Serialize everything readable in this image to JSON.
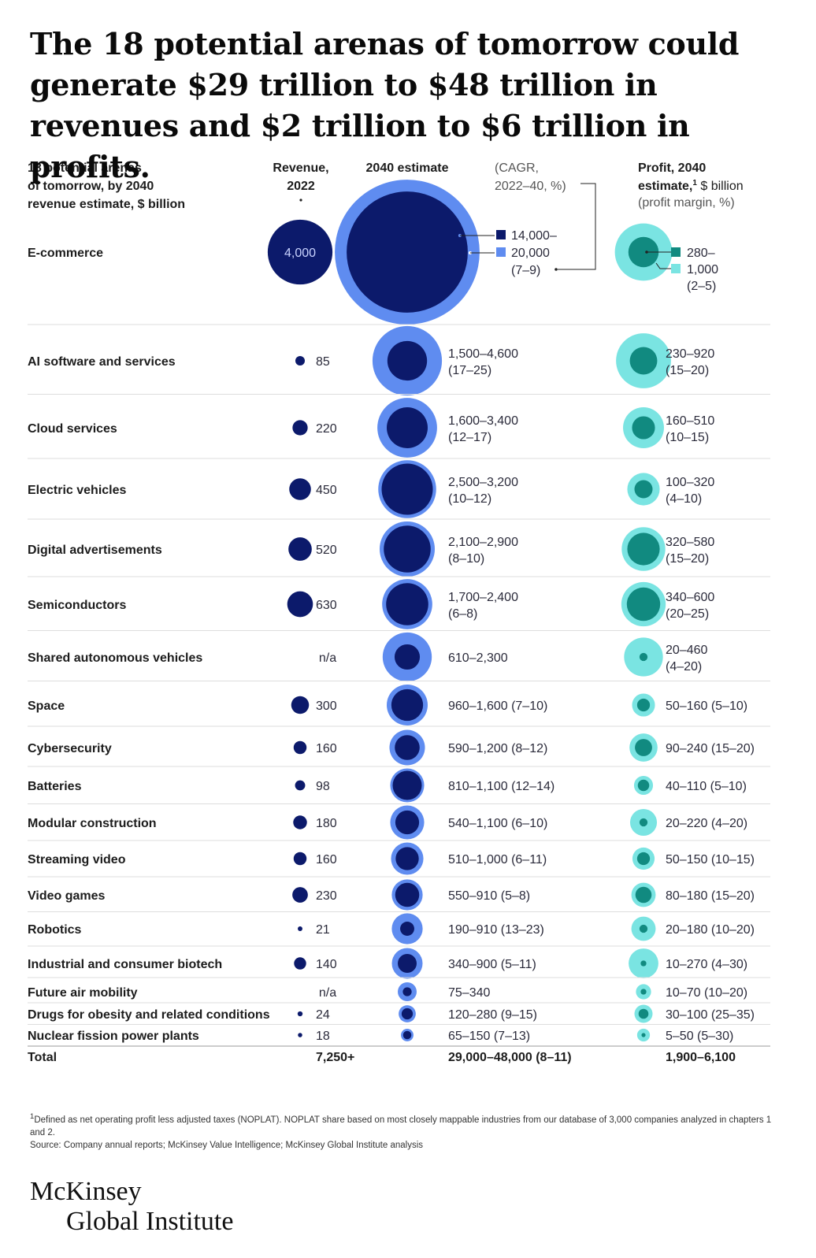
{
  "title": "The 18 potential arenas of tomorrow could generate $29 trillion to $48 trillion in revenues and $2 trillion to $6 trillion in profits.",
  "colors": {
    "navy": "#0c1a6b",
    "light_blue": "#5f8cf0",
    "teal_dark": "#118a80",
    "teal_light": "#7ae4e2",
    "rule": "#dddddd"
  },
  "headers": {
    "arena": [
      "18 potential arenas",
      "of tomorrow, by 2040",
      "revenue estimate, $ billion"
    ],
    "rev2022": [
      "Revenue,",
      "2022"
    ],
    "est2040": "2040 estimate",
    "cagr": [
      "(CAGR,",
      "2022–40, %)"
    ],
    "profit": [
      "Profit, 2040",
      "estimate,",
      "$ billion",
      "(profit margin, %)"
    ],
    "profit_sup": "1"
  },
  "ecommerce_legend": {
    "rev_low": "14,000–",
    "rev_high": "20,000",
    "cagr": "(7–9)",
    "profit_low": "280–",
    "profit_high": "1,000",
    "margin": "(2–5)"
  },
  "total": {
    "label": "Total",
    "rev2022": "7,250+",
    "est2040": "29,000–48,000 (8–11)",
    "profit": "1,900–6,100"
  },
  "footnote": {
    "sup": "1",
    "note": "Defined as net operating profit less adjusted taxes (NOPLAT). NOPLAT share based on most closely mappable industries from our database of 3,000 companies analyzed in chapters 1 and 2.",
    "source": "Source: Company annual reports; McKinsey Value Intelligence; McKinsey Global Institute analysis"
  },
  "logo": {
    "line1": "McKinsey",
    "line2": "Global Institute"
  },
  "chart_data": {
    "type": "bubble-table",
    "title": "The 18 potential arenas of tomorrow could generate $29 trillion to $48 trillion in revenues and $2 trillion to $6 trillion in profits.",
    "units": "$ billion",
    "rows": [
      {
        "arena": "E-commerce",
        "rev2022": 4000,
        "rev2022_label": "4,000",
        "rev2040_low": 14000,
        "rev2040_high": 20000,
        "rev2040_label": "",
        "cagr_label": "",
        "profit_low": 280,
        "profit_high": 1000,
        "profit_label": "",
        "margin_label": ""
      },
      {
        "arena": "AI software and services",
        "rev2022": 85,
        "rev2022_label": "85",
        "rev2040_low": 1500,
        "rev2040_high": 4600,
        "rev2040_label": "1,500–4,600",
        "cagr_label": "(17–25)",
        "profit_low": 230,
        "profit_high": 920,
        "profit_label": "230–920",
        "margin_label": "(15–20)"
      },
      {
        "arena": "Cloud services",
        "rev2022": 220,
        "rev2022_label": "220",
        "rev2040_low": 1600,
        "rev2040_high": 3400,
        "rev2040_label": "1,600–3,400",
        "cagr_label": "(12–17)",
        "profit_low": 160,
        "profit_high": 510,
        "profit_label": "160–510",
        "margin_label": "(10–15)"
      },
      {
        "arena": "Electric vehicles",
        "rev2022": 450,
        "rev2022_label": "450",
        "rev2040_low": 2500,
        "rev2040_high": 3200,
        "rev2040_label": "2,500–3,200",
        "cagr_label": "(10–12)",
        "profit_low": 100,
        "profit_high": 320,
        "profit_label": "100–320",
        "margin_label": "(4–10)"
      },
      {
        "arena": "Digital advertisements",
        "rev2022": 520,
        "rev2022_label": "520",
        "rev2040_low": 2100,
        "rev2040_high": 2900,
        "rev2040_label": "2,100–2,900",
        "cagr_label": "(8–10)",
        "profit_low": 320,
        "profit_high": 580,
        "profit_label": "320–580",
        "margin_label": "(15–20)"
      },
      {
        "arena": "Semiconductors",
        "rev2022": 630,
        "rev2022_label": "630",
        "rev2040_low": 1700,
        "rev2040_high": 2400,
        "rev2040_label": "1,700–2,400",
        "cagr_label": "(6–8)",
        "profit_low": 340,
        "profit_high": 600,
        "profit_label": "340–600",
        "margin_label": "(20–25)"
      },
      {
        "arena": "Shared autonomous vehicles",
        "rev2022": null,
        "rev2022_label": "n/a",
        "rev2040_low": 610,
        "rev2040_high": 2300,
        "rev2040_label": "610–2,300",
        "cagr_label": "",
        "profit_low": 20,
        "profit_high": 460,
        "profit_label": "20–460",
        "margin_label": "(4–20)"
      },
      {
        "arena": "Space",
        "rev2022": 300,
        "rev2022_label": "300",
        "rev2040_low": 960,
        "rev2040_high": 1600,
        "rev2040_label": "960–1,600 (7–10)",
        "cagr_label": "",
        "profit_low": 50,
        "profit_high": 160,
        "profit_label": "50–160 (5–10)",
        "margin_label": ""
      },
      {
        "arena": "Cybersecurity",
        "rev2022": 160,
        "rev2022_label": "160",
        "rev2040_low": 590,
        "rev2040_high": 1200,
        "rev2040_label": "590–1,200 (8–12)",
        "cagr_label": "",
        "profit_low": 90,
        "profit_high": 240,
        "profit_label": "90–240 (15–20)",
        "margin_label": ""
      },
      {
        "arena": "Batteries",
        "rev2022": 98,
        "rev2022_label": "98",
        "rev2040_low": 810,
        "rev2040_high": 1100,
        "rev2040_label": "810–1,100 (12–14)",
        "cagr_label": "",
        "profit_low": 40,
        "profit_high": 110,
        "profit_label": "40–110 (5–10)",
        "margin_label": ""
      },
      {
        "arena": "Modular construction",
        "rev2022": 180,
        "rev2022_label": "180",
        "rev2040_low": 540,
        "rev2040_high": 1100,
        "rev2040_label": "540–1,100 (6–10)",
        "cagr_label": "",
        "profit_low": 20,
        "profit_high": 220,
        "profit_label": "20–220 (4–20)",
        "margin_label": ""
      },
      {
        "arena": "Streaming video",
        "rev2022": 160,
        "rev2022_label": "160",
        "rev2040_low": 510,
        "rev2040_high": 1000,
        "rev2040_label": "510–1,000 (6–11)",
        "cagr_label": "",
        "profit_low": 50,
        "profit_high": 150,
        "profit_label": "50–150 (10–15)",
        "margin_label": ""
      },
      {
        "arena": "Video games",
        "rev2022": 230,
        "rev2022_label": "230",
        "rev2040_low": 550,
        "rev2040_high": 910,
        "rev2040_label": "550–910 (5–8)",
        "cagr_label": "",
        "profit_low": 80,
        "profit_high": 180,
        "profit_label": "80–180 (15–20)",
        "margin_label": ""
      },
      {
        "arena": "Robotics",
        "rev2022": 21,
        "rev2022_label": "21",
        "rev2040_low": 190,
        "rev2040_high": 910,
        "rev2040_label": "190–910 (13–23)",
        "cagr_label": "",
        "profit_low": 20,
        "profit_high": 180,
        "profit_label": "20–180 (10–20)",
        "margin_label": ""
      },
      {
        "arena": "Industrial and consumer biotech",
        "rev2022": 140,
        "rev2022_label": "140",
        "rev2040_low": 340,
        "rev2040_high": 900,
        "rev2040_label": "340–900 (5–11)",
        "cagr_label": "",
        "profit_low": 10,
        "profit_high": 270,
        "profit_label": "10–270 (4–30)",
        "margin_label": ""
      },
      {
        "arena": "Future air mobility",
        "rev2022": null,
        "rev2022_label": "n/a",
        "rev2040_low": 75,
        "rev2040_high": 340,
        "rev2040_label": "75–340",
        "cagr_label": "",
        "profit_low": 10,
        "profit_high": 70,
        "profit_label": "10–70 (10–20)",
        "margin_label": ""
      },
      {
        "arena": "Drugs for obesity and related conditions",
        "rev2022": 24,
        "rev2022_label": "24",
        "rev2040_low": 120,
        "rev2040_high": 280,
        "rev2040_label": "120–280 (9–15)",
        "cagr_label": "",
        "profit_low": 30,
        "profit_high": 100,
        "profit_label": "30–100 (25–35)",
        "margin_label": ""
      },
      {
        "arena": "Nuclear fission power plants",
        "rev2022": 18,
        "rev2022_label": "18",
        "rev2040_low": 65,
        "rev2040_high": 150,
        "rev2040_label": "65–150 (7–13)",
        "cagr_label": "",
        "profit_low": 5,
        "profit_high": 50,
        "profit_label": "5–50 (5–30)",
        "margin_label": ""
      }
    ]
  }
}
